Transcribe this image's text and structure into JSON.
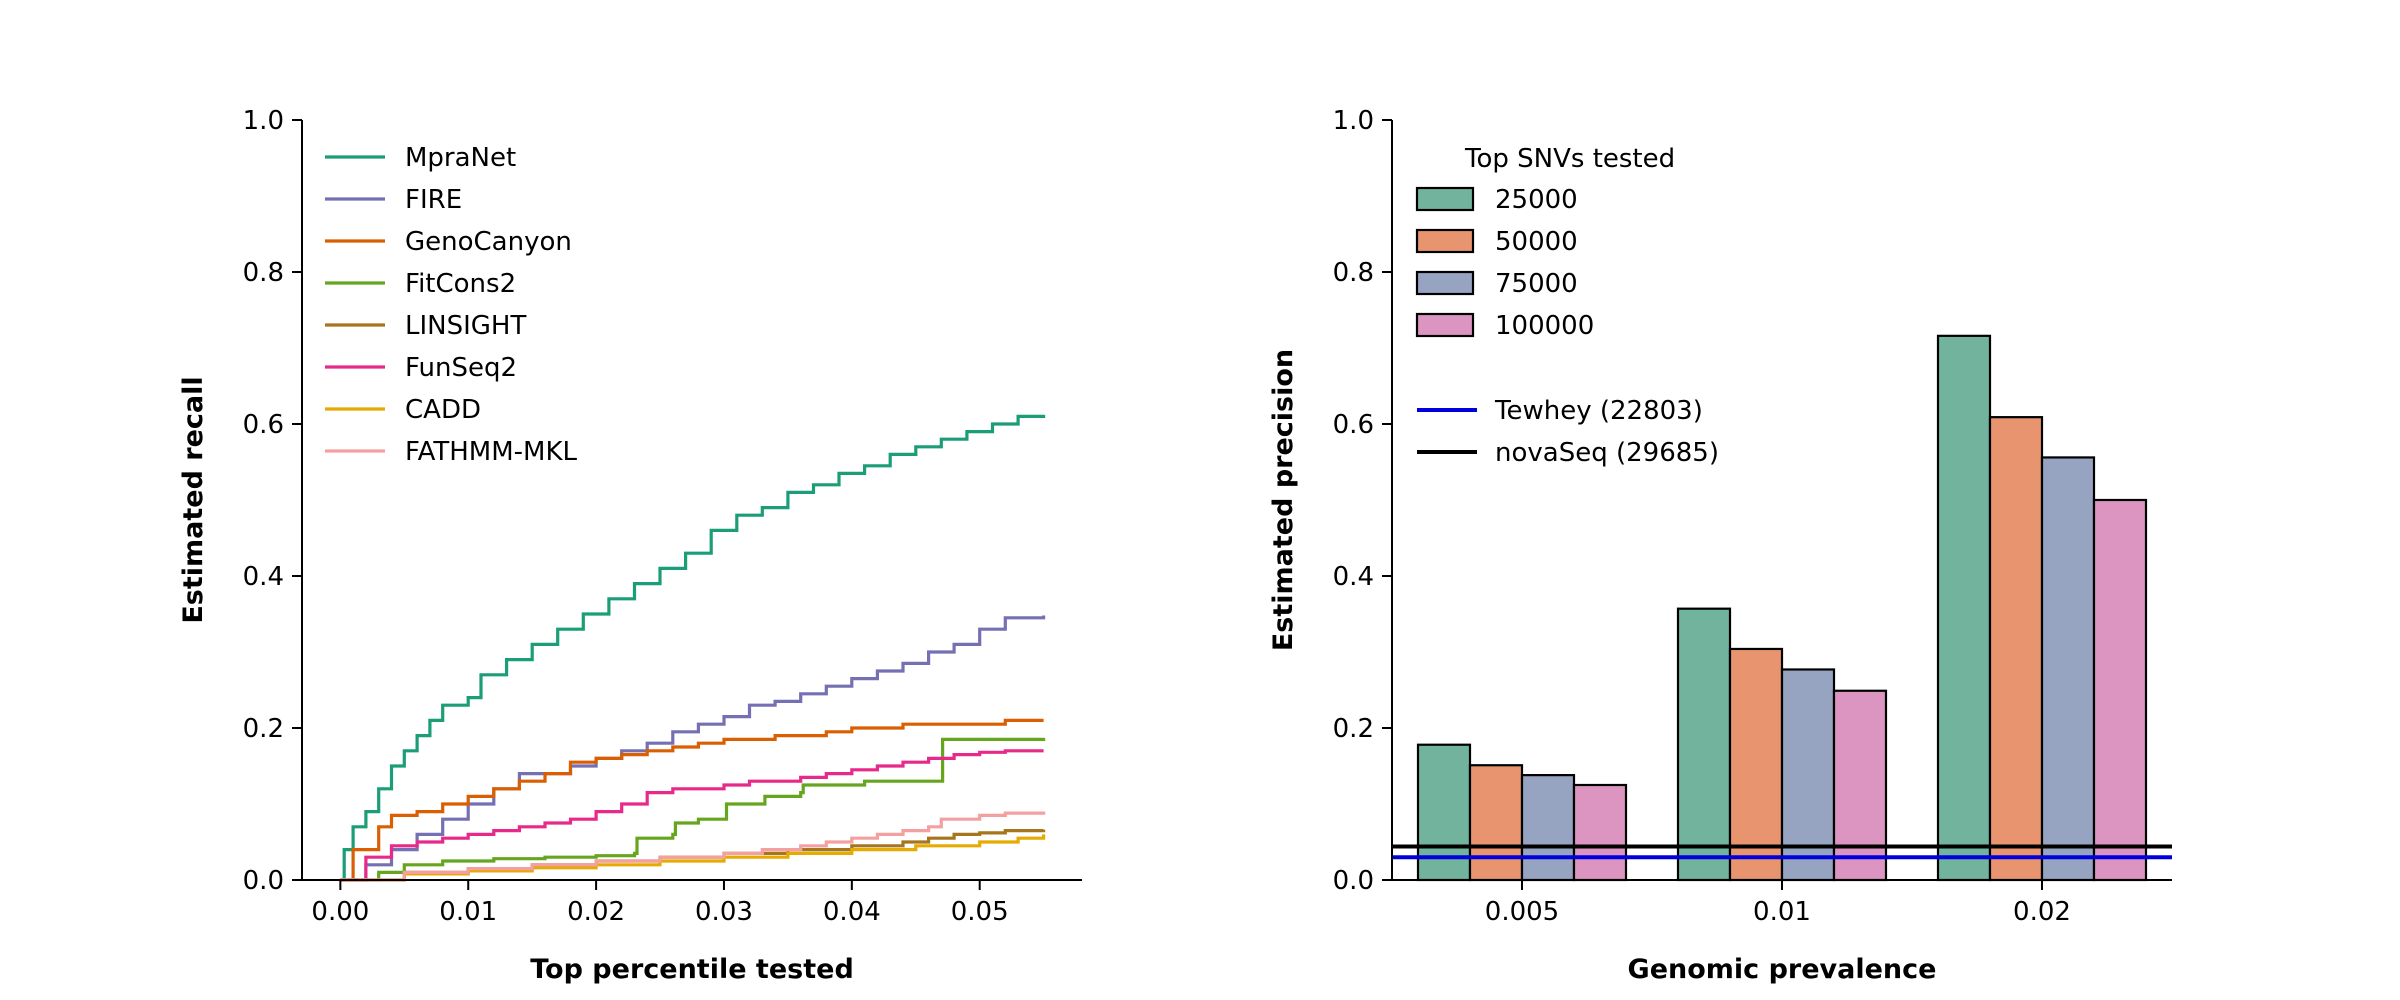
{
  "chart_data": [
    {
      "type": "line",
      "title": "",
      "xlabel": "Top percentile tested",
      "ylabel": "Estimated recall",
      "xlim": [
        -0.003,
        0.058
      ],
      "ylim": [
        0,
        1.0
      ],
      "xticks": [
        0.0,
        0.01,
        0.02,
        0.03,
        0.04,
        0.05
      ],
      "xtick_labels": [
        "0.00",
        "0.01",
        "0.02",
        "0.03",
        "0.04",
        "0.05"
      ],
      "yticks": [
        0.0,
        0.2,
        0.4,
        0.6,
        0.8,
        1.0
      ],
      "ytick_labels": [
        "0.0",
        "0.2",
        "0.4",
        "0.6",
        "0.8",
        "1.0"
      ],
      "grid": false,
      "legend_position": "top-left",
      "series": [
        {
          "name": "MpraNet",
          "color": "#1b9e77",
          "points": [
            [
              0,
              0
            ],
            [
              0.0003,
              0.04
            ],
            [
              0.001,
              0.07
            ],
            [
              0.002,
              0.09
            ],
            [
              0.003,
              0.12
            ],
            [
              0.004,
              0.15
            ],
            [
              0.005,
              0.17
            ],
            [
              0.006,
              0.19
            ],
            [
              0.007,
              0.21
            ],
            [
              0.008,
              0.23
            ],
            [
              0.01,
              0.24
            ],
            [
              0.011,
              0.27
            ],
            [
              0.013,
              0.29
            ],
            [
              0.015,
              0.31
            ],
            [
              0.017,
              0.33
            ],
            [
              0.019,
              0.35
            ],
            [
              0.021,
              0.37
            ],
            [
              0.023,
              0.39
            ],
            [
              0.025,
              0.41
            ],
            [
              0.027,
              0.43
            ],
            [
              0.029,
              0.46
            ],
            [
              0.031,
              0.48
            ],
            [
              0.033,
              0.49
            ],
            [
              0.035,
              0.51
            ],
            [
              0.037,
              0.52
            ],
            [
              0.039,
              0.535
            ],
            [
              0.041,
              0.545
            ],
            [
              0.043,
              0.56
            ],
            [
              0.045,
              0.57
            ],
            [
              0.047,
              0.58
            ],
            [
              0.049,
              0.59
            ],
            [
              0.051,
              0.6
            ],
            [
              0.053,
              0.61
            ],
            [
              0.055,
              0.612
            ]
          ]
        },
        {
          "name": "FIRE",
          "color": "#7570b3",
          "points": [
            [
              0,
              0
            ],
            [
              0.002,
              0.02
            ],
            [
              0.004,
              0.04
            ],
            [
              0.006,
              0.06
            ],
            [
              0.008,
              0.08
            ],
            [
              0.01,
              0.1
            ],
            [
              0.012,
              0.12
            ],
            [
              0.014,
              0.14
            ],
            [
              0.016,
              0.14
            ],
            [
              0.018,
              0.15
            ],
            [
              0.02,
              0.16
            ],
            [
              0.022,
              0.17
            ],
            [
              0.024,
              0.18
            ],
            [
              0.026,
              0.195
            ],
            [
              0.028,
              0.205
            ],
            [
              0.03,
              0.215
            ],
            [
              0.032,
              0.23
            ],
            [
              0.034,
              0.235
            ],
            [
              0.036,
              0.245
            ],
            [
              0.038,
              0.255
            ],
            [
              0.04,
              0.265
            ],
            [
              0.042,
              0.275
            ],
            [
              0.044,
              0.285
            ],
            [
              0.046,
              0.3
            ],
            [
              0.048,
              0.31
            ],
            [
              0.05,
              0.33
            ],
            [
              0.052,
              0.345
            ],
            [
              0.055,
              0.348
            ]
          ]
        },
        {
          "name": "GenoCanyon",
          "color": "#d95f02",
          "points": [
            [
              0,
              0
            ],
            [
              0.001,
              0.04
            ],
            [
              0.003,
              0.07
            ],
            [
              0.004,
              0.085
            ],
            [
              0.006,
              0.09
            ],
            [
              0.008,
              0.1
            ],
            [
              0.01,
              0.11
            ],
            [
              0.012,
              0.12
            ],
            [
              0.014,
              0.13
            ],
            [
              0.016,
              0.14
            ],
            [
              0.018,
              0.155
            ],
            [
              0.02,
              0.16
            ],
            [
              0.022,
              0.165
            ],
            [
              0.024,
              0.17
            ],
            [
              0.026,
              0.175
            ],
            [
              0.028,
              0.18
            ],
            [
              0.03,
              0.185
            ],
            [
              0.032,
              0.185
            ],
            [
              0.034,
              0.19
            ],
            [
              0.036,
              0.19
            ],
            [
              0.038,
              0.195
            ],
            [
              0.04,
              0.2
            ],
            [
              0.042,
              0.2
            ],
            [
              0.044,
              0.205
            ],
            [
              0.046,
              0.205
            ],
            [
              0.048,
              0.205
            ],
            [
              0.05,
              0.205
            ],
            [
              0.052,
              0.21
            ],
            [
              0.055,
              0.21
            ]
          ]
        },
        {
          "name": "FitCons2",
          "color": "#66a61e",
          "points": [
            [
              0,
              0
            ],
            [
              0.003,
              0.01
            ],
            [
              0.005,
              0.02
            ],
            [
              0.008,
              0.025
            ],
            [
              0.012,
              0.028
            ],
            [
              0.016,
              0.03
            ],
            [
              0.02,
              0.032
            ],
            [
              0.023,
              0.035
            ],
            [
              0.0232,
              0.055
            ],
            [
              0.026,
              0.06
            ],
            [
              0.0262,
              0.075
            ],
            [
              0.028,
              0.08
            ],
            [
              0.03,
              0.08
            ],
            [
              0.0302,
              0.1
            ],
            [
              0.033,
              0.1
            ],
            [
              0.0332,
              0.11
            ],
            [
              0.036,
              0.115
            ],
            [
              0.0362,
              0.125
            ],
            [
              0.04,
              0.125
            ],
            [
              0.041,
              0.13
            ],
            [
              0.047,
              0.13
            ],
            [
              0.0471,
              0.185
            ],
            [
              0.055,
              0.187
            ]
          ]
        },
        {
          "name": "LINSIGHT",
          "color": "#a6761d",
          "points": [
            [
              0,
              0
            ],
            [
              0.005,
              0.01
            ],
            [
              0.01,
              0.015
            ],
            [
              0.015,
              0.02
            ],
            [
              0.02,
              0.025
            ],
            [
              0.025,
              0.03
            ],
            [
              0.03,
              0.035
            ],
            [
              0.035,
              0.04
            ],
            [
              0.04,
              0.045
            ],
            [
              0.044,
              0.05
            ],
            [
              0.046,
              0.055
            ],
            [
              0.048,
              0.06
            ],
            [
              0.05,
              0.062
            ],
            [
              0.052,
              0.065
            ],
            [
              0.055,
              0.066
            ]
          ]
        },
        {
          "name": "FunSeq2",
          "color": "#e7298a",
          "points": [
            [
              0,
              0
            ],
            [
              0.002,
              0.03
            ],
            [
              0.004,
              0.045
            ],
            [
              0.006,
              0.05
            ],
            [
              0.008,
              0.055
            ],
            [
              0.01,
              0.06
            ],
            [
              0.012,
              0.065
            ],
            [
              0.014,
              0.07
            ],
            [
              0.016,
              0.075
            ],
            [
              0.018,
              0.08
            ],
            [
              0.02,
              0.09
            ],
            [
              0.022,
              0.1
            ],
            [
              0.024,
              0.115
            ],
            [
              0.026,
              0.12
            ],
            [
              0.028,
              0.12
            ],
            [
              0.03,
              0.125
            ],
            [
              0.032,
              0.13
            ],
            [
              0.034,
              0.13
            ],
            [
              0.036,
              0.135
            ],
            [
              0.038,
              0.14
            ],
            [
              0.04,
              0.145
            ],
            [
              0.042,
              0.15
            ],
            [
              0.044,
              0.155
            ],
            [
              0.046,
              0.16
            ],
            [
              0.048,
              0.165
            ],
            [
              0.05,
              0.168
            ],
            [
              0.052,
              0.17
            ],
            [
              0.055,
              0.17
            ]
          ]
        },
        {
          "name": "CADD",
          "color": "#e6ab02",
          "points": [
            [
              0,
              0
            ],
            [
              0.005,
              0.008
            ],
            [
              0.01,
              0.012
            ],
            [
              0.015,
              0.016
            ],
            [
              0.02,
              0.02
            ],
            [
              0.025,
              0.025
            ],
            [
              0.03,
              0.03
            ],
            [
              0.035,
              0.035
            ],
            [
              0.04,
              0.04
            ],
            [
              0.045,
              0.045
            ],
            [
              0.05,
              0.05
            ],
            [
              0.053,
              0.055
            ],
            [
              0.055,
              0.06
            ]
          ]
        },
        {
          "name": "FATHMM-MKL",
          "color": "#f4a0a0",
          "points": [
            [
              0,
              0
            ],
            [
              0.005,
              0.01
            ],
            [
              0.01,
              0.015
            ],
            [
              0.015,
              0.02
            ],
            [
              0.02,
              0.025
            ],
            [
              0.025,
              0.03
            ],
            [
              0.03,
              0.035
            ],
            [
              0.033,
              0.04
            ],
            [
              0.036,
              0.045
            ],
            [
              0.038,
              0.05
            ],
            [
              0.04,
              0.055
            ],
            [
              0.042,
              0.06
            ],
            [
              0.044,
              0.065
            ],
            [
              0.046,
              0.07
            ],
            [
              0.047,
              0.08
            ],
            [
              0.05,
              0.085
            ],
            [
              0.052,
              0.088
            ],
            [
              0.055,
              0.09
            ]
          ]
        }
      ]
    },
    {
      "type": "bar",
      "title": "",
      "xlabel": "Genomic prevalence",
      "ylabel": "Estimated precision",
      "categories": [
        "0.005",
        "0.01",
        "0.02"
      ],
      "ylim": [
        0,
        1.0
      ],
      "yticks": [
        0.0,
        0.2,
        0.4,
        0.6,
        0.8,
        1.0
      ],
      "ytick_labels": [
        "0.0",
        "0.2",
        "0.4",
        "0.6",
        "0.8",
        "1.0"
      ],
      "grid": false,
      "legend_title": "Top SNVs tested",
      "legend_position": "top-left",
      "series": [
        {
          "name": "25000",
          "color": "#72b39d",
          "values": [
            0.178,
            0.357,
            0.716
          ]
        },
        {
          "name": "50000",
          "color": "#e8956f",
          "values": [
            0.151,
            0.304,
            0.609
          ]
        },
        {
          "name": "75000",
          "color": "#96a3c1",
          "values": [
            0.138,
            0.277,
            0.556
          ]
        },
        {
          "name": "100000",
          "color": "#dc95c1",
          "values": [
            0.125,
            0.249,
            0.5
          ]
        }
      ],
      "reference_lines": [
        {
          "name": "Tewhey (22803)",
          "color": "#0000dd",
          "value": 0.03
        },
        {
          "name": "novaSeq (29685)",
          "color": "#000000",
          "value": 0.044
        }
      ]
    }
  ]
}
